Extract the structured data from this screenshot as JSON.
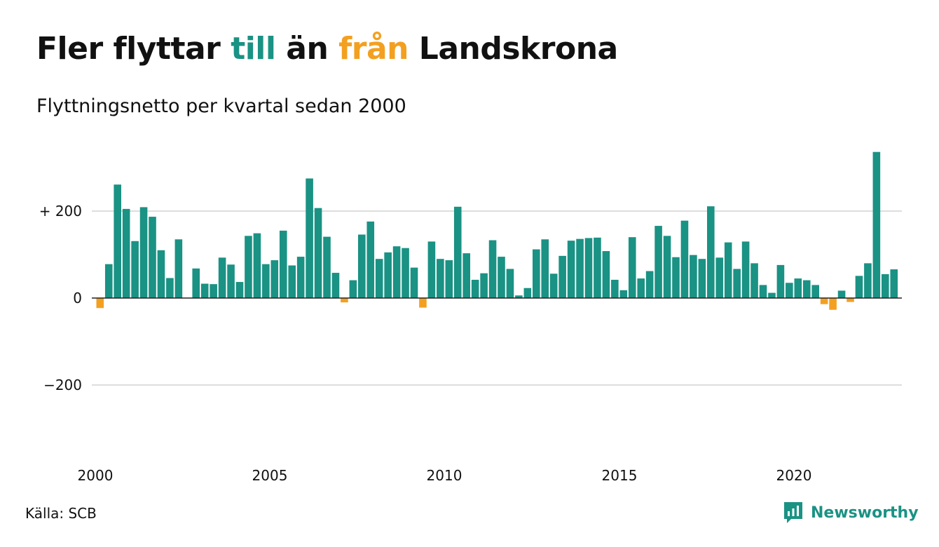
{
  "title": {
    "part1": "Fler flyttar ",
    "highlight_positive": "till",
    "part2": " än ",
    "highlight_negative": "från",
    "part3": " Landskrona"
  },
  "subtitle": "Flyttningsnetto per kvartal sedan 2000",
  "source": "Källa: SCB",
  "brand": "Newsworthy",
  "colors": {
    "positive": "#1a9284",
    "negative": "#f3a020",
    "grid": "#dddddd",
    "text": "#111111",
    "brand": "#1a9284"
  },
  "chart_data": {
    "type": "bar",
    "x_start": "2000 Q1",
    "x_tick_labels": [
      "2000",
      "2005",
      "2010",
      "2015",
      "2020"
    ],
    "y_ticks": [
      200,
      0,
      -200
    ],
    "y_tick_labels": [
      "+ 200",
      "0",
      "−200"
    ],
    "ylim": [
      -300,
      340
    ],
    "grid": true,
    "series": [
      {
        "values": [
          -23,
          78,
          261,
          205,
          131,
          209,
          187,
          110,
          46,
          135,
          0,
          68,
          33,
          32,
          93,
          77,
          37,
          143,
          149,
          78,
          87,
          155,
          75,
          95,
          275,
          207,
          141,
          58,
          -10,
          41,
          146,
          176,
          90,
          105,
          119,
          115,
          70,
          -22,
          130,
          90,
          87,
          210,
          103,
          42,
          57,
          133,
          95,
          67,
          6,
          23,
          112,
          135,
          56,
          97,
          132,
          136,
          138,
          139,
          108,
          42,
          18,
          140,
          45,
          62,
          166,
          143,
          94,
          178,
          99,
          90,
          211,
          93,
          128,
          67,
          130,
          80,
          30,
          12,
          76,
          35,
          45,
          41,
          30,
          -14,
          -27,
          17,
          -9,
          51,
          80,
          336,
          55,
          66
        ]
      }
    ]
  }
}
